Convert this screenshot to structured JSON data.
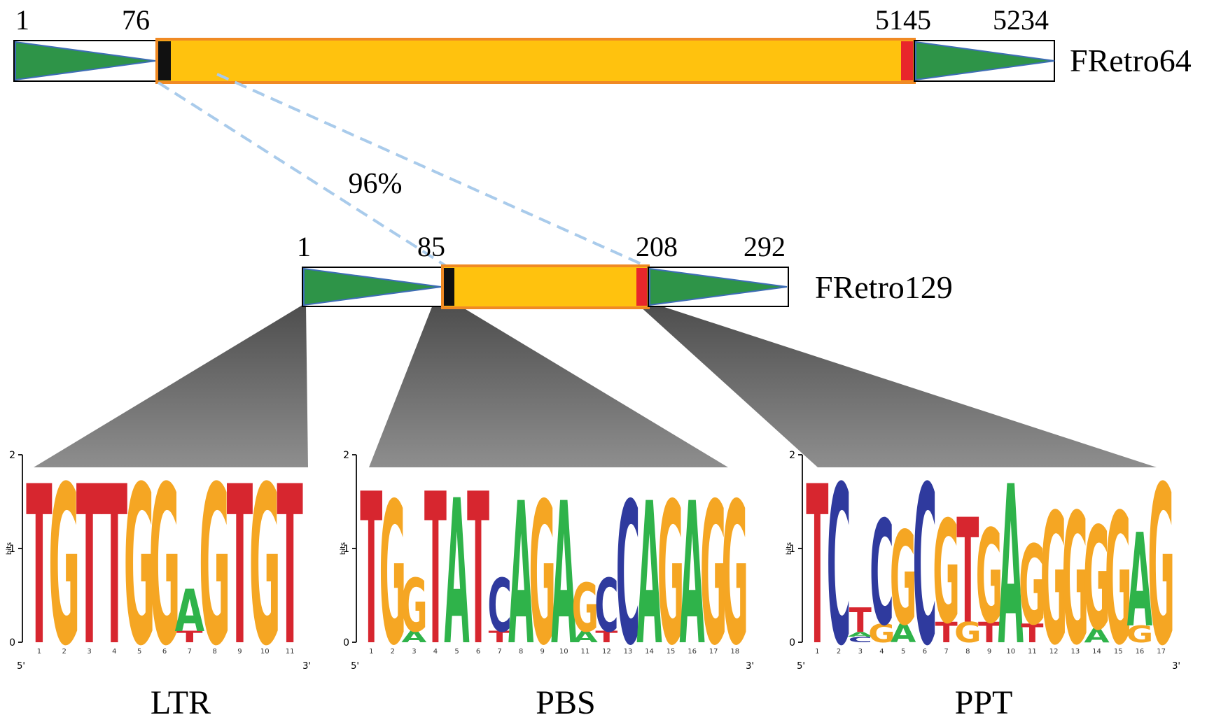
{
  "colors": {
    "ltr_fill": "#2E9448",
    "ltr_line": "#3E6DB5",
    "body_fill": "#FFC20E",
    "body_border": "#F08A24",
    "pbs_mark": "#111111",
    "ppt_mark": "#E8262B",
    "connector": "#A9CBEB",
    "funnel_dark": "#5A5A5A",
    "funnel_light": "#9A9A9A",
    "nt_A": "#2FB34A",
    "nt_C": "#2F3A9E",
    "nt_G": "#F5A623",
    "nt_T": "#D7262F"
  },
  "elements": {
    "fretro64": {
      "name": "FRetro64",
      "start": "1",
      "ltr_end": "76",
      "ppt_pos": "5145",
      "end": "5234"
    },
    "fretro129": {
      "name": "FRetro129",
      "start": "1",
      "ltr_end": "85",
      "ppt_pos": "208",
      "end": "292"
    },
    "identity": "96%"
  },
  "logos": [
    {
      "label": "LTR",
      "start_label": "5'",
      "end_label": "3'",
      "y_ticks": [
        "0",
        "1",
        "2"
      ],
      "y_label": "bits",
      "columns": [
        [
          [
            "T",
            1.7
          ]
        ],
        [
          [
            "G",
            1.7
          ]
        ],
        [
          [
            "T",
            1.7
          ]
        ],
        [
          [
            "T",
            1.7
          ]
        ],
        [
          [
            "G",
            1.7
          ]
        ],
        [
          [
            "G",
            1.7
          ]
        ],
        [
          [
            "T",
            0.12
          ],
          [
            "A",
            0.45
          ]
        ],
        [
          [
            "G",
            1.7
          ]
        ],
        [
          [
            "T",
            1.7
          ]
        ],
        [
          [
            "G",
            1.7
          ]
        ],
        [
          [
            "T",
            1.7
          ]
        ]
      ]
    },
    {
      "label": "PBS",
      "start_label": "5'",
      "end_label": "3'",
      "y_ticks": [
        "0",
        "1",
        "2"
      ],
      "y_label": "bits",
      "columns": [
        [
          [
            "T",
            1.62
          ]
        ],
        [
          [
            "G",
            1.52
          ]
        ],
        [
          [
            "A",
            0.12
          ],
          [
            "G",
            0.57
          ]
        ],
        [
          [
            "T",
            1.62
          ]
        ],
        [
          [
            "A",
            1.55
          ]
        ],
        [
          [
            "T",
            1.62
          ]
        ],
        [
          [
            "T",
            0.12
          ],
          [
            "C",
            0.57
          ]
        ],
        [
          [
            "A",
            1.52
          ]
        ],
        [
          [
            "G",
            1.52
          ]
        ],
        [
          [
            "A",
            1.52
          ]
        ],
        [
          [
            "A",
            0.12
          ],
          [
            "G",
            0.52
          ]
        ],
        [
          [
            "T",
            0.12
          ],
          [
            "C",
            0.57
          ]
        ],
        [
          [
            "C",
            1.52
          ]
        ],
        [
          [
            "A",
            1.52
          ]
        ],
        [
          [
            "G",
            1.52
          ]
        ],
        [
          [
            "A",
            1.52
          ]
        ],
        [
          [
            "G",
            1.52
          ]
        ],
        [
          [
            "G",
            1.52
          ]
        ]
      ]
    },
    {
      "label": "PPT",
      "start_label": "5'",
      "end_label": "3'",
      "y_ticks": [
        "0",
        "1",
        "2"
      ],
      "y_label": "bits",
      "columns": [
        [
          [
            "T",
            1.7
          ]
        ],
        [
          [
            "C",
            1.7
          ]
        ],
        [
          [
            "C",
            0.06
          ],
          [
            "A",
            0.05
          ],
          [
            "T",
            0.26
          ]
        ],
        [
          [
            "G",
            0.2
          ],
          [
            "C",
            1.12
          ]
        ],
        [
          [
            "A",
            0.2
          ],
          [
            "G",
            1.0
          ]
        ],
        [
          [
            "C",
            1.7
          ]
        ],
        [
          [
            "T",
            0.22
          ],
          [
            "G",
            1.1
          ]
        ],
        [
          [
            "G",
            0.22
          ],
          [
            "T",
            1.12
          ]
        ],
        [
          [
            "T",
            0.22
          ],
          [
            "G",
            1.0
          ]
        ],
        [
          [
            "A",
            1.7
          ]
        ],
        [
          [
            "T",
            0.2
          ],
          [
            "G",
            0.85
          ]
        ],
        [
          [
            "G",
            1.4
          ]
        ],
        [
          [
            "G",
            1.4
          ]
        ],
        [
          [
            "A",
            0.15
          ],
          [
            "G",
            1.1
          ]
        ],
        [
          [
            "G",
            1.4
          ]
        ],
        [
          [
            "G",
            0.18
          ],
          [
            "A",
            1.0
          ]
        ],
        [
          [
            "G",
            1.7
          ]
        ]
      ]
    }
  ]
}
